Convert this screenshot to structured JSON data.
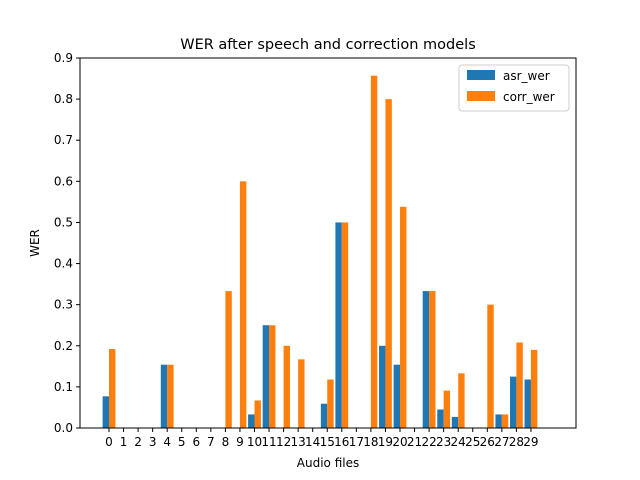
{
  "chart_data": {
    "type": "bar",
    "title": "WER after speech and correction models",
    "xlabel": "Audio files",
    "ylabel": "WER",
    "ylim": [
      0,
      0.9
    ],
    "yticks": [
      "0.0",
      "0.1",
      "0.2",
      "0.3",
      "0.4",
      "0.5",
      "0.6",
      "0.7",
      "0.8",
      "0.9"
    ],
    "categories": [
      "0",
      "1",
      "2",
      "3",
      "4",
      "5",
      "6",
      "7",
      "8",
      "9",
      "10",
      "11",
      "12",
      "13",
      "14",
      "15",
      "16",
      "17",
      "18",
      "19",
      "20",
      "21",
      "22",
      "23",
      "24",
      "25",
      "26",
      "27",
      "28",
      "29"
    ],
    "legend_position": "top-right",
    "series": [
      {
        "name": "asr_wer",
        "color": "#1f77b4",
        "values": [
          0.077,
          0,
          0,
          0,
          0.154,
          0,
          0,
          0,
          0,
          0,
          0.033,
          0.25,
          0,
          0,
          0,
          0.059,
          0.5,
          0,
          0,
          0.2,
          0.154,
          0,
          0.333,
          0.045,
          0.027,
          0,
          0,
          0.033,
          0.125,
          0.118
        ]
      },
      {
        "name": "corr_wer",
        "color": "#ff7f0e",
        "values": [
          0.192,
          0,
          0,
          0,
          0.154,
          0,
          0,
          0,
          0.333,
          0.6,
          0.067,
          0.25,
          0.2,
          0.167,
          0,
          0.118,
          0.5,
          0,
          0.857,
          0.8,
          0.538,
          0,
          0.333,
          0.091,
          0.133,
          0,
          0.3,
          0.033,
          0.208,
          0.19
        ]
      }
    ]
  }
}
